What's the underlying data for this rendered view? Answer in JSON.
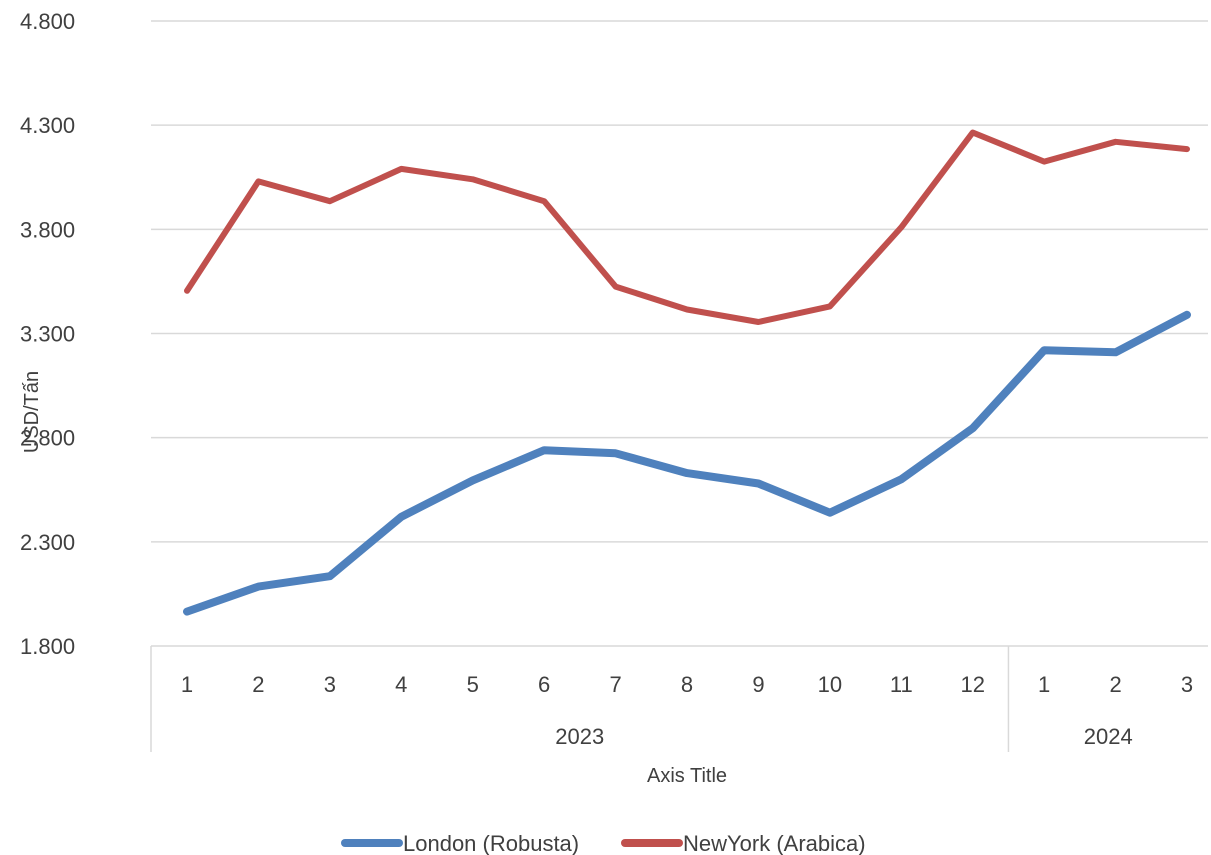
{
  "chart_data": {
    "type": "line",
    "title": "",
    "xlabel": "Axis Title",
    "ylabel": "USD/Tấn",
    "ylim": [
      1800,
      4800
    ],
    "yticks": [
      1800,
      2300,
      2800,
      3300,
      3800,
      4300,
      4800
    ],
    "ytick_labels": [
      "1.800",
      "2.300",
      "2.800",
      "3.300",
      "3.800",
      "4.300",
      "4.800"
    ],
    "categories": [
      "1",
      "2",
      "3",
      "4",
      "5",
      "6",
      "7",
      "8",
      "9",
      "10",
      "11",
      "12",
      "1",
      "2",
      "3"
    ],
    "groups": [
      {
        "label": "2023",
        "count": 12
      },
      {
        "label": "2024",
        "count": 3
      }
    ],
    "series": [
      {
        "name": "London (Robusta)",
        "color": "#4f81bd",
        "values": [
          1965,
          2085,
          2135,
          2420,
          2595,
          2740,
          2725,
          2630,
          2580,
          2440,
          2600,
          2845,
          3220,
          3210,
          3390
        ]
      },
      {
        "name": "NewYork (Arabica)",
        "color": "#c0504d",
        "values": [
          3505,
          4030,
          3935,
          4090,
          4040,
          3935,
          3525,
          3415,
          3355,
          3430,
          3810,
          4265,
          4125,
          4220,
          4185
        ]
      }
    ],
    "grid": true,
    "legend_position": "bottom"
  }
}
